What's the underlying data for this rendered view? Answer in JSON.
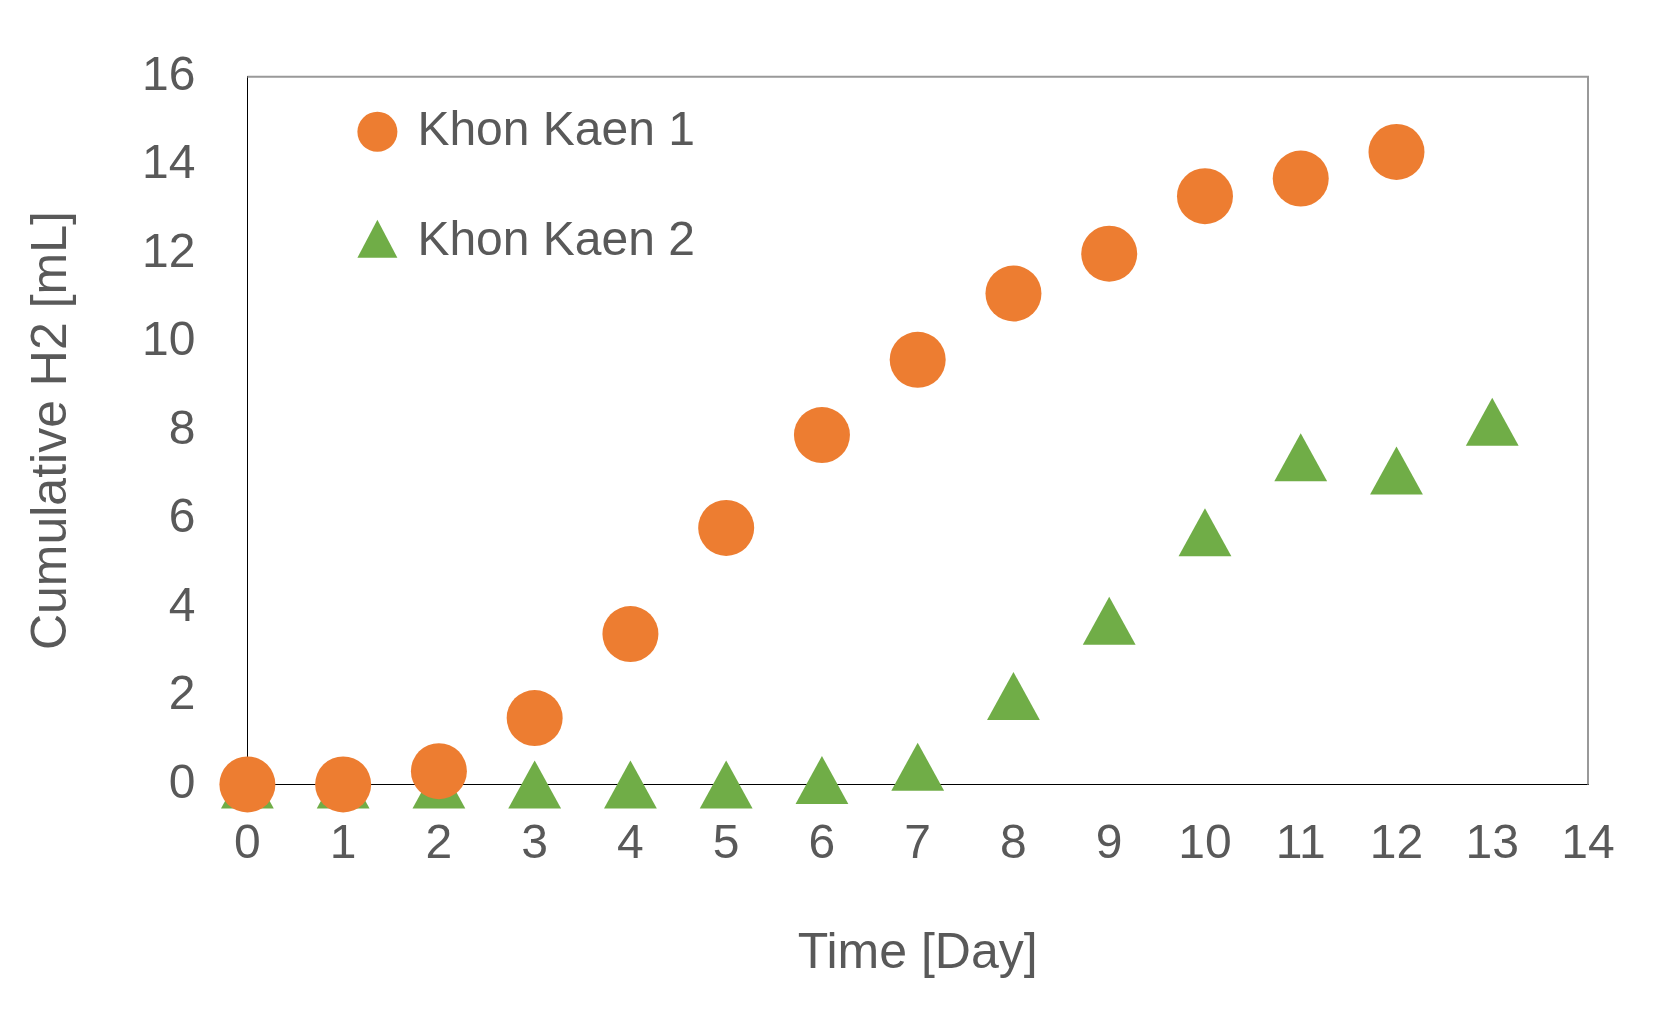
{
  "chart_data": {
    "type": "scatter",
    "xlabel": "Time [Day]",
    "ylabel": "Cumulative H2 [mL]",
    "xlim": [
      0,
      14
    ],
    "xticks": [
      0,
      1,
      2,
      3,
      4,
      5,
      6,
      7,
      8,
      9,
      10,
      11,
      12,
      13,
      14
    ],
    "ylim": [
      0,
      16
    ],
    "yticks": [
      0,
      2,
      4,
      6,
      8,
      10,
      12,
      14,
      16
    ],
    "grid": false,
    "legend": "top left",
    "series": [
      {
        "name": "Khon Kaen 1",
        "color": "#ed7d31",
        "marker": "circle",
        "x": [
          0,
          1,
          2,
          3,
          4,
          5,
          6,
          7,
          8,
          9,
          10,
          11,
          12
        ],
        "values": [
          0,
          0,
          0.3,
          1.5,
          3.4,
          5.8,
          7.9,
          9.6,
          11.1,
          12,
          13.3,
          13.7,
          14.3
        ]
      },
      {
        "name": "Khon Kaen 2",
        "color": "#70ad47",
        "marker": "triangle",
        "x": [
          0,
          1,
          2,
          3,
          4,
          5,
          6,
          7,
          8,
          9,
          10,
          11,
          12,
          13
        ],
        "values": [
          0,
          0,
          0,
          0,
          0,
          0,
          0.1,
          0.4,
          2,
          3.7,
          5.7,
          7.4,
          7.1,
          8.2
        ]
      }
    ]
  }
}
